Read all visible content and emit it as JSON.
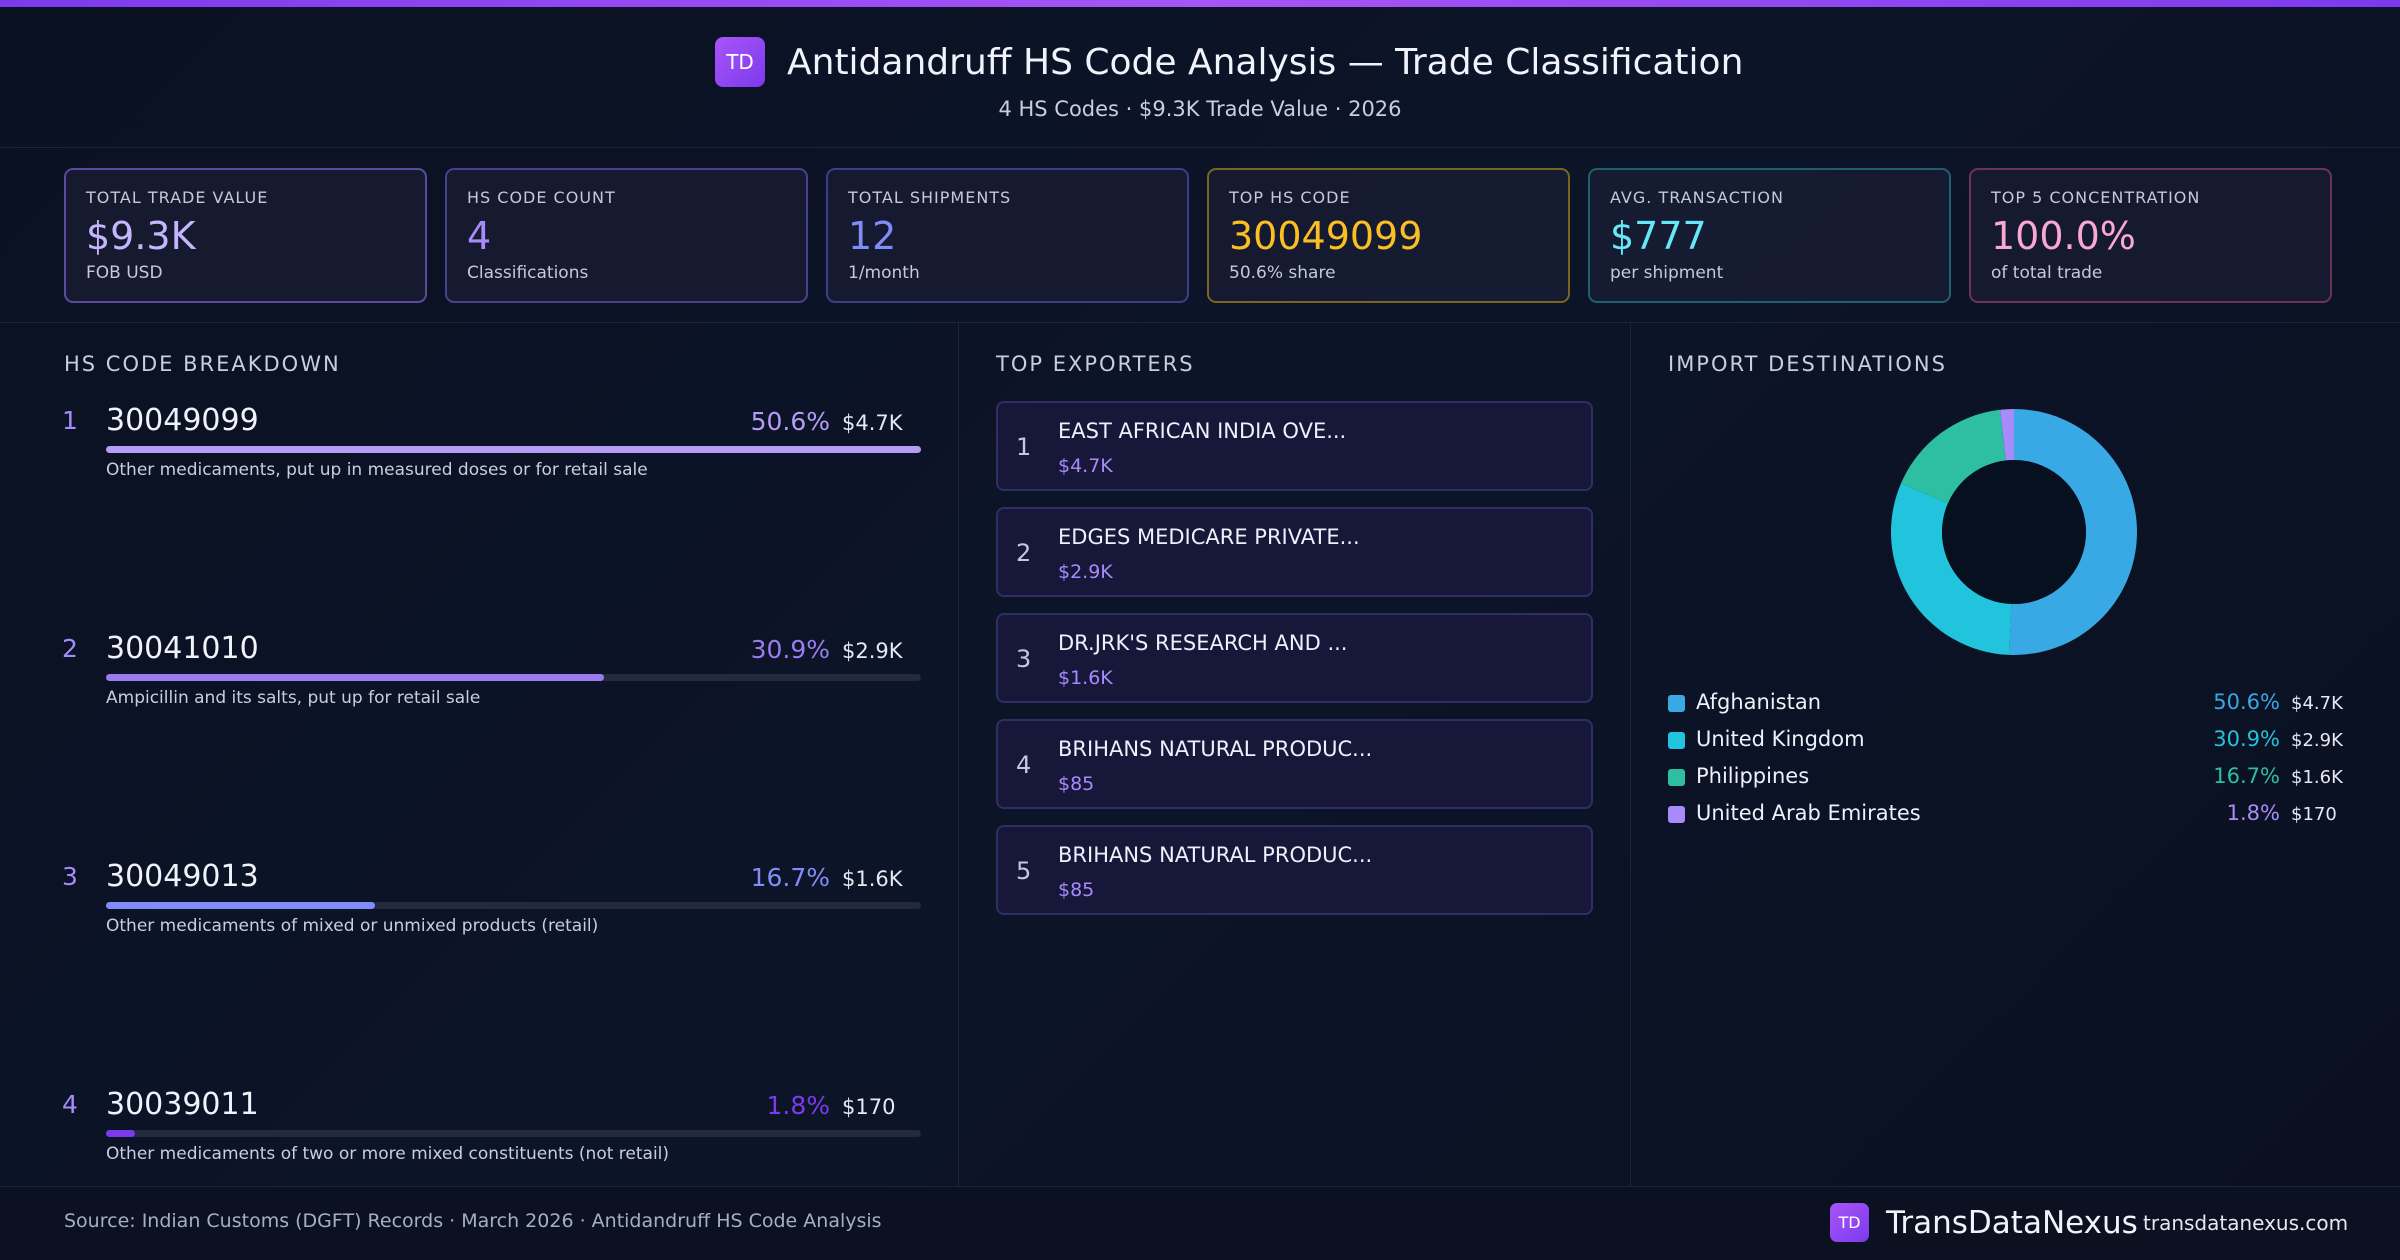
{
  "header": {
    "logo": "TD",
    "title": "Antidandruff HS Code Analysis — Trade Classification",
    "subtitle": "4 HS Codes · $9.3K Trade Value · 2026"
  },
  "kpis": [
    {
      "label": "TOTAL TRADE VALUE",
      "value": "$9.3K",
      "sub": "FOB USD",
      "color": "#c4b5fd",
      "border": "#5b4a9e"
    },
    {
      "label": "HS CODE COUNT",
      "value": "4",
      "sub": "Classifications",
      "color": "#a78bfa",
      "border": "#4c3f8f"
    },
    {
      "label": "TOTAL SHIPMENTS",
      "value": "12",
      "sub": "1/month",
      "color": "#818cf8",
      "border": "#3c3f84"
    },
    {
      "label": "TOP HS CODE",
      "value": "30049099",
      "sub": "50.6% share",
      "color": "#fbbf24",
      "border": "#7a6422"
    },
    {
      "label": "AVG. TRANSACTION",
      "value": "$777",
      "sub": "per shipment",
      "color": "#67e8f9",
      "border": "#1f5f6e"
    },
    {
      "label": "TOP 5 CONCENTRATION",
      "value": "100.0%",
      "sub": "of total trade",
      "color": "#f9a8d4",
      "border": "#6b3457"
    }
  ],
  "hs_codes": {
    "title": "HS CODE BREAKDOWN",
    "items": [
      {
        "rank": 1,
        "code": "30049099",
        "share": 50.6,
        "share_label": "50.6%",
        "value": "$4.7K",
        "description": "Other medicaments, put up in measured doses or for retail sale",
        "color": "#b69cf7"
      },
      {
        "rank": 2,
        "code": "30041010",
        "share": 30.9,
        "share_label": "30.9%",
        "value": "$2.9K",
        "description": "Ampicillin and its salts, put up for retail sale",
        "color": "#9a7cf0"
      },
      {
        "rank": 3,
        "code": "30049013",
        "share": 16.7,
        "share_label": "16.7%",
        "value": "$1.6K",
        "description": "Other medicaments of mixed or unmixed products (retail)",
        "color": "#818cf8"
      },
      {
        "rank": 4,
        "code": "30039011",
        "share": 1.8,
        "share_label": "1.8%",
        "value": "$170",
        "description": "Other medicaments of two or more mixed constituents (not retail)",
        "color": "#7c3aed"
      }
    ]
  },
  "exporters": {
    "title": "TOP EXPORTERS",
    "items": [
      {
        "rank": 1,
        "name": "EAST AFRICAN INDIA OVE...",
        "value": "$4.7K"
      },
      {
        "rank": 2,
        "name": "EDGES MEDICARE PRIVATE...",
        "value": "$2.9K"
      },
      {
        "rank": 3,
        "name": "DR.JRK'S RESEARCH AND ...",
        "value": "$1.6K"
      },
      {
        "rank": 4,
        "name": "BRIHANS NATURAL PRODUC...",
        "value": "$85"
      },
      {
        "rank": 5,
        "name": "BRIHANS NATURAL PRODUC...",
        "value": "$85"
      }
    ]
  },
  "destinations": {
    "title": "IMPORT DESTINATIONS",
    "items": [
      {
        "name": "Afghanistan",
        "share": 50.6,
        "share_label": "50.6%",
        "value": "$4.7K",
        "color": "#38a9e4"
      },
      {
        "name": "United Kingdom",
        "share": 30.9,
        "share_label": "30.9%",
        "value": "$2.9K",
        "color": "#22c3dc"
      },
      {
        "name": "Philippines",
        "share": 16.7,
        "share_label": "16.7%",
        "value": "$1.6K",
        "color": "#2ebfa3"
      },
      {
        "name": "United Arab Emirates",
        "share": 1.8,
        "share_label": "1.8%",
        "value": "$170",
        "color": "#a78bfa"
      }
    ]
  },
  "footer": {
    "source": "Source: Indian Customs (DGFT) Records · March 2026 · Antidandruff HS Code Analysis",
    "logo": "TD",
    "brand": "TransDataNexus",
    "url": "transdatanexus.com"
  }
}
